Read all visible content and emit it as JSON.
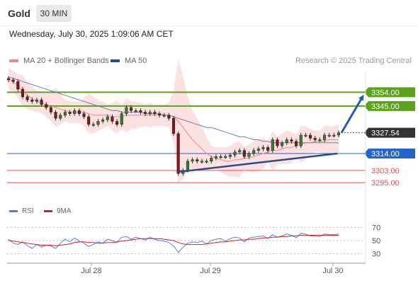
{
  "header": {
    "title": "Gold",
    "timeframe": "30 MIN"
  },
  "datetime": "Wednesday, July 30, 2025 1:09:06 AM CET",
  "legend": {
    "ma20": {
      "label": "MA 20 + Bollinger Bands",
      "color": "#f08a8a"
    },
    "ma50": {
      "label": "MA 50",
      "color": "#2b4c8c"
    }
  },
  "credit": "Research © 2025 Trading Central",
  "rsi_legend": {
    "rsi": {
      "label": "RSI",
      "color": "#5b7fd6"
    },
    "ma9": {
      "label": "9MA",
      "color": "#d62020"
    }
  },
  "chart_data": [
    {
      "type": "candlestick",
      "title": "Gold",
      "timeframe": "30 MIN",
      "x_ticks": [
        "Jul 28",
        "Jul 29",
        "Jul 30"
      ],
      "ylim": [
        3284,
        3368
      ],
      "levels": [
        {
          "value": 3354.0,
          "label": "3354.00",
          "kind": "resistance",
          "color": "#5aa31a"
        },
        {
          "value": 3345.0,
          "label": "3345.00",
          "kind": "resistance",
          "color": "#5aa31a"
        },
        {
          "value": 3327.54,
          "label": "3327.54",
          "kind": "last-price",
          "color": "#333333"
        },
        {
          "value": 3314.0,
          "label": "3314.00",
          "kind": "pivot",
          "color": "#2266cc"
        },
        {
          "value": 3303.0,
          "label": "3303.00",
          "kind": "support",
          "color": "#e05050"
        },
        {
          "value": 3295.0,
          "label": "3295.00",
          "kind": "support",
          "color": "#e05050"
        }
      ],
      "close_series": [
        3362,
        3361,
        3356,
        3351,
        3349,
        3348,
        3349,
        3346,
        3344,
        3341,
        3337,
        3339,
        3341,
        3340,
        3342,
        3340,
        3338,
        3333,
        3333,
        3335,
        3336,
        3338,
        3335,
        3333,
        3340,
        3344,
        3342,
        3342,
        3341,
        3340,
        3341,
        3340,
        3339,
        3339,
        3337,
        3327,
        3301,
        3303,
        3309,
        3310,
        3309,
        3309,
        3309,
        3311,
        3312,
        3312,
        3312,
        3313,
        3315,
        3316,
        3312,
        3314,
        3316,
        3317,
        3318,
        3316,
        3323,
        3319,
        3321,
        3323,
        3322,
        3319,
        3326,
        3326,
        3324,
        3323,
        3323,
        3326,
        3326,
        3326,
        3327.54
      ],
      "ma20": [
        3363,
        3361,
        3358,
        3355,
        3352,
        3350,
        3348,
        3347,
        3346,
        3345,
        3344,
        3343,
        3342,
        3341,
        3341,
        3341,
        3341,
        3340,
        3339,
        3339,
        3339,
        3339,
        3338,
        3338,
        3338,
        3339,
        3339,
        3339,
        3339,
        3339,
        3339,
        3339,
        3339,
        3339,
        3339,
        3338,
        3335,
        3331,
        3327,
        3323,
        3320,
        3317,
        3314,
        3312,
        3311,
        3310,
        3309,
        3309,
        3310,
        3310,
        3311,
        3311,
        3312,
        3313,
        3314,
        3315,
        3316,
        3316,
        3317,
        3318,
        3318,
        3319,
        3320,
        3321,
        3321,
        3322,
        3322,
        3322,
        3323,
        3323,
        3323
      ],
      "ma50": [
        3364,
        3363,
        3362,
        3361,
        3360,
        3359,
        3358,
        3357,
        3356,
        3355,
        3354,
        3353,
        3352,
        3351,
        3350,
        3349,
        3348,
        3347,
        3346,
        3345,
        3344,
        3343,
        3342,
        3342,
        3341,
        3341,
        3341,
        3341,
        3341,
        3340,
        3340,
        3340,
        3340,
        3339,
        3339,
        3338,
        3337,
        3336,
        3335,
        3334,
        3333,
        3332,
        3331,
        3331,
        3330,
        3329,
        3328,
        3327,
        3326,
        3325,
        3325,
        3324,
        3323,
        3323,
        3322,
        3322,
        3321,
        3321,
        3321,
        3321,
        3321,
        3321,
        3321,
        3321,
        3321,
        3321,
        3321,
        3321,
        3321,
        3321,
        3321
      ],
      "trendline": {
        "from": 3302,
        "to": 3314
      },
      "projection_target": 3354.0
    },
    {
      "type": "line",
      "title": "RSI",
      "ylim": [
        20,
        80
      ],
      "y_ticks": [
        70,
        50,
        30
      ],
      "series": [
        {
          "name": "RSI",
          "color": "#5b7fd6",
          "values": [
            52,
            46,
            44,
            48,
            42,
            38,
            44,
            40,
            43,
            42,
            38,
            46,
            52,
            48,
            54,
            49,
            46,
            41,
            44,
            48,
            46,
            52,
            50,
            47,
            55,
            56,
            52,
            55,
            53,
            51,
            55,
            52,
            50,
            49,
            47,
            42,
            32,
            40,
            46,
            48,
            47,
            49,
            45,
            50,
            52,
            53,
            49,
            53,
            55,
            54,
            48,
            54,
            55,
            56,
            57,
            53,
            59,
            55,
            57,
            60,
            58,
            54,
            61,
            60,
            57,
            57,
            56,
            60,
            59,
            59,
            60
          ]
        },
        {
          "name": "9MA",
          "color": "#d62020",
          "values": [
            50,
            49,
            48,
            47,
            46,
            45,
            44,
            43,
            43,
            43,
            42,
            43,
            44,
            45,
            47,
            48,
            48,
            47,
            47,
            46,
            46,
            47,
            47,
            48,
            49,
            50,
            51,
            52,
            53,
            53,
            53,
            53,
            53,
            52,
            51,
            50,
            47,
            45,
            44,
            44,
            44,
            44,
            45,
            46,
            47,
            48,
            48,
            49,
            50,
            51,
            51,
            52,
            52,
            53,
            54,
            54,
            55,
            55,
            56,
            56,
            57,
            57,
            58,
            58,
            58,
            58,
            58,
            58,
            58,
            58,
            58
          ]
        }
      ]
    }
  ]
}
